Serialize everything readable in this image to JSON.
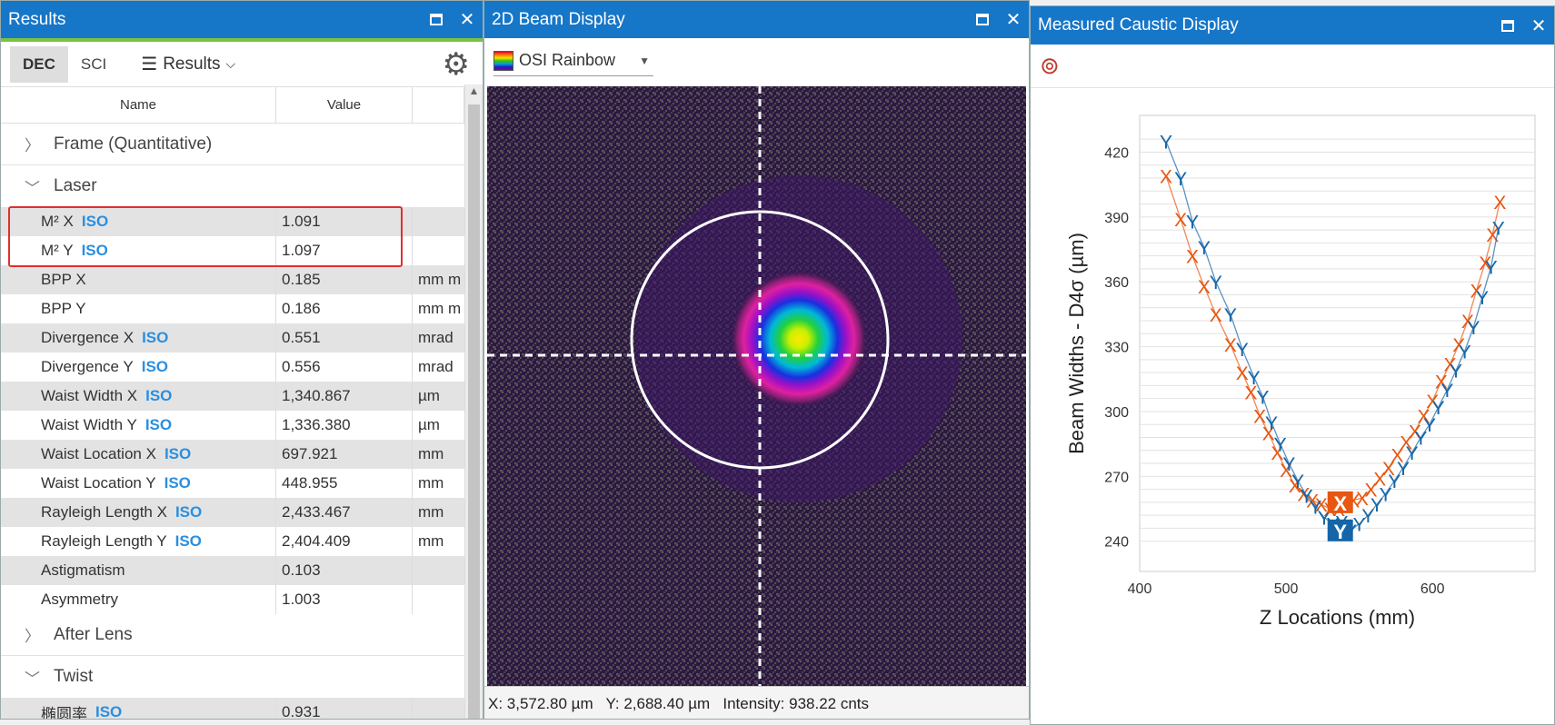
{
  "results": {
    "title": "Results",
    "toolbar": {
      "dec": "DEC",
      "sci": "SCI",
      "menu_label": "Results"
    },
    "columns": {
      "name": "Name",
      "value": "Value"
    },
    "groups": {
      "frame": "Frame (Quantitative)",
      "laser": "Laser",
      "after_lens": "After Lens",
      "twist": "Twist"
    },
    "laser_rows": [
      {
        "name": "M² X",
        "iso": "ISO",
        "value": "1.091",
        "unit": ""
      },
      {
        "name": "M² Y",
        "iso": "ISO",
        "value": "1.097",
        "unit": ""
      },
      {
        "name": "BPP X",
        "iso": "",
        "value": "0.185",
        "unit": "mm m"
      },
      {
        "name": "BPP Y",
        "iso": "",
        "value": "0.186",
        "unit": "mm m"
      },
      {
        "name": "Divergence X",
        "iso": "ISO",
        "value": "0.551",
        "unit": "mrad"
      },
      {
        "name": "Divergence Y",
        "iso": "ISO",
        "value": "0.556",
        "unit": "mrad"
      },
      {
        "name": "Waist Width X",
        "iso": "ISO",
        "value": "1,340.867",
        "unit": "µm"
      },
      {
        "name": "Waist Width Y",
        "iso": "ISO",
        "value": "1,336.380",
        "unit": "µm"
      },
      {
        "name": "Waist Location X",
        "iso": "ISO",
        "value": "697.921",
        "unit": "mm"
      },
      {
        "name": "Waist Location Y",
        "iso": "ISO",
        "value": "448.955",
        "unit": "mm"
      },
      {
        "name": "Rayleigh Length X",
        "iso": "ISO",
        "value": "2,433.467",
        "unit": "mm"
      },
      {
        "name": "Rayleigh Length Y",
        "iso": "ISO",
        "value": "2,404.409",
        "unit": "mm"
      },
      {
        "name": "Astigmatism",
        "iso": "",
        "value": "0.103",
        "unit": ""
      },
      {
        "name": "Asymmetry",
        "iso": "",
        "value": "1.003",
        "unit": ""
      }
    ],
    "twist_rows": [
      {
        "name": "椭圆率",
        "iso": "ISO",
        "value": "0.931",
        "unit": ""
      }
    ]
  },
  "beam": {
    "title": "2D Beam Display",
    "palette": "OSI Rainbow",
    "status": "X: 3,572.80 µm   Y: 2,688.40 µm   Intensity: 938.22 cnts"
  },
  "caustic": {
    "title": "Measured Caustic Display"
  },
  "colors": {
    "titlebar": "#1676c8",
    "accent_green": "#7cc242",
    "series_x": "#e8560f",
    "series_y": "#1565a8",
    "beam_bg": "#2b1240"
  },
  "chart_data": {
    "type": "scatter",
    "xlabel": "Z Locations (mm)",
    "ylabel": "Beam Widths - D4σ (µm)",
    "xlim": [
      400,
      670
    ],
    "ylim": [
      226,
      437
    ],
    "x_ticks": [
      400,
      500,
      600
    ],
    "y_ticks": [
      240,
      270,
      300,
      330,
      360,
      390,
      420
    ],
    "grid": "horizontal",
    "series": [
      {
        "name": "X",
        "marker": "X",
        "points": [
          [
            418,
            409
          ],
          [
            428,
            389
          ],
          [
            436,
            372
          ],
          [
            444,
            358
          ],
          [
            452,
            345
          ],
          [
            462,
            331
          ],
          [
            470,
            318
          ],
          [
            476,
            309
          ],
          [
            482,
            298
          ],
          [
            488,
            290
          ],
          [
            494,
            281
          ],
          [
            500,
            273
          ],
          [
            506,
            266
          ],
          [
            512,
            262
          ],
          [
            518,
            259
          ],
          [
            524,
            257
          ],
          [
            530,
            255
          ],
          [
            536,
            255
          ],
          [
            540,
            257
          ],
          [
            546,
            259
          ],
          [
            552,
            260
          ],
          [
            558,
            264
          ],
          [
            564,
            269
          ],
          [
            570,
            274
          ],
          [
            576,
            280
          ],
          [
            582,
            286
          ],
          [
            588,
            291
          ],
          [
            594,
            298
          ],
          [
            600,
            305
          ],
          [
            606,
            314
          ],
          [
            612,
            322
          ],
          [
            618,
            331
          ],
          [
            624,
            342
          ],
          [
            630,
            356
          ],
          [
            636,
            369
          ],
          [
            641,
            382
          ],
          [
            646,
            397
          ]
        ]
      },
      {
        "name": "Y",
        "marker": "Y",
        "points": [
          [
            418,
            425
          ],
          [
            428,
            408
          ],
          [
            436,
            388
          ],
          [
            444,
            376
          ],
          [
            452,
            360
          ],
          [
            462,
            345
          ],
          [
            470,
            329
          ],
          [
            478,
            316
          ],
          [
            484,
            307
          ],
          [
            490,
            295
          ],
          [
            496,
            285
          ],
          [
            502,
            276
          ],
          [
            508,
            268
          ],
          [
            514,
            261
          ],
          [
            520,
            256
          ],
          [
            526,
            251
          ],
          [
            532,
            248
          ],
          [
            538,
            249
          ],
          [
            544,
            245
          ],
          [
            550,
            248
          ],
          [
            556,
            252
          ],
          [
            562,
            257
          ],
          [
            568,
            262
          ],
          [
            574,
            268
          ],
          [
            580,
            274
          ],
          [
            586,
            281
          ],
          [
            592,
            288
          ],
          [
            598,
            294
          ],
          [
            604,
            302
          ],
          [
            610,
            310
          ],
          [
            616,
            319
          ],
          [
            622,
            328
          ],
          [
            628,
            339
          ],
          [
            634,
            353
          ],
          [
            640,
            367
          ],
          [
            645,
            385
          ]
        ]
      }
    ]
  }
}
